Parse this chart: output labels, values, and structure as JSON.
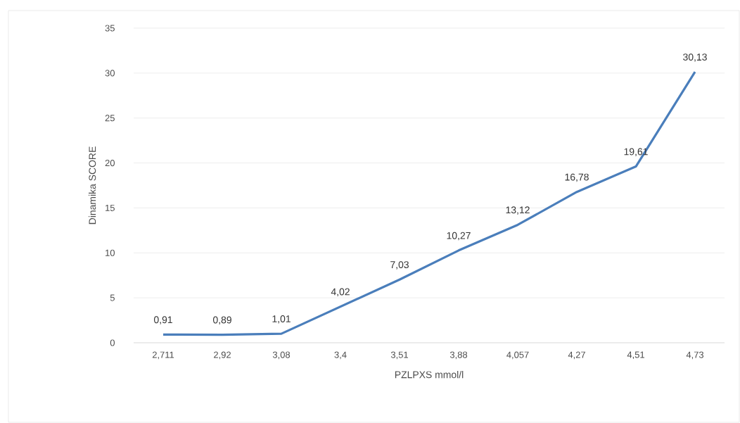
{
  "chart_data": {
    "type": "line",
    "xlabel": "PZLPXS mmol/l",
    "ylabel": "Dinamika SCORE",
    "categories": [
      "2,711",
      "2,92",
      "3,08",
      "3,4",
      "3,51",
      "3,88",
      "4,057",
      "4,27",
      "4,51",
      "4,73"
    ],
    "series": [
      {
        "color": "#4a7ebb",
        "values": [
          0.91,
          0.89,
          1.01,
          4.02,
          7.03,
          10.27,
          13.12,
          16.78,
          19.61,
          30.13
        ],
        "value_labels": [
          "0,91",
          "0,89",
          "1,01",
          "4,02",
          "7,03",
          "10,27",
          "13,12",
          "16,78",
          "19,61",
          "30,13"
        ]
      }
    ],
    "ylim": [
      0,
      35
    ],
    "yticks": [
      0,
      5,
      10,
      15,
      20,
      25,
      30,
      35
    ],
    "grid": "y",
    "marker": "none",
    "line_style": "solid"
  }
}
